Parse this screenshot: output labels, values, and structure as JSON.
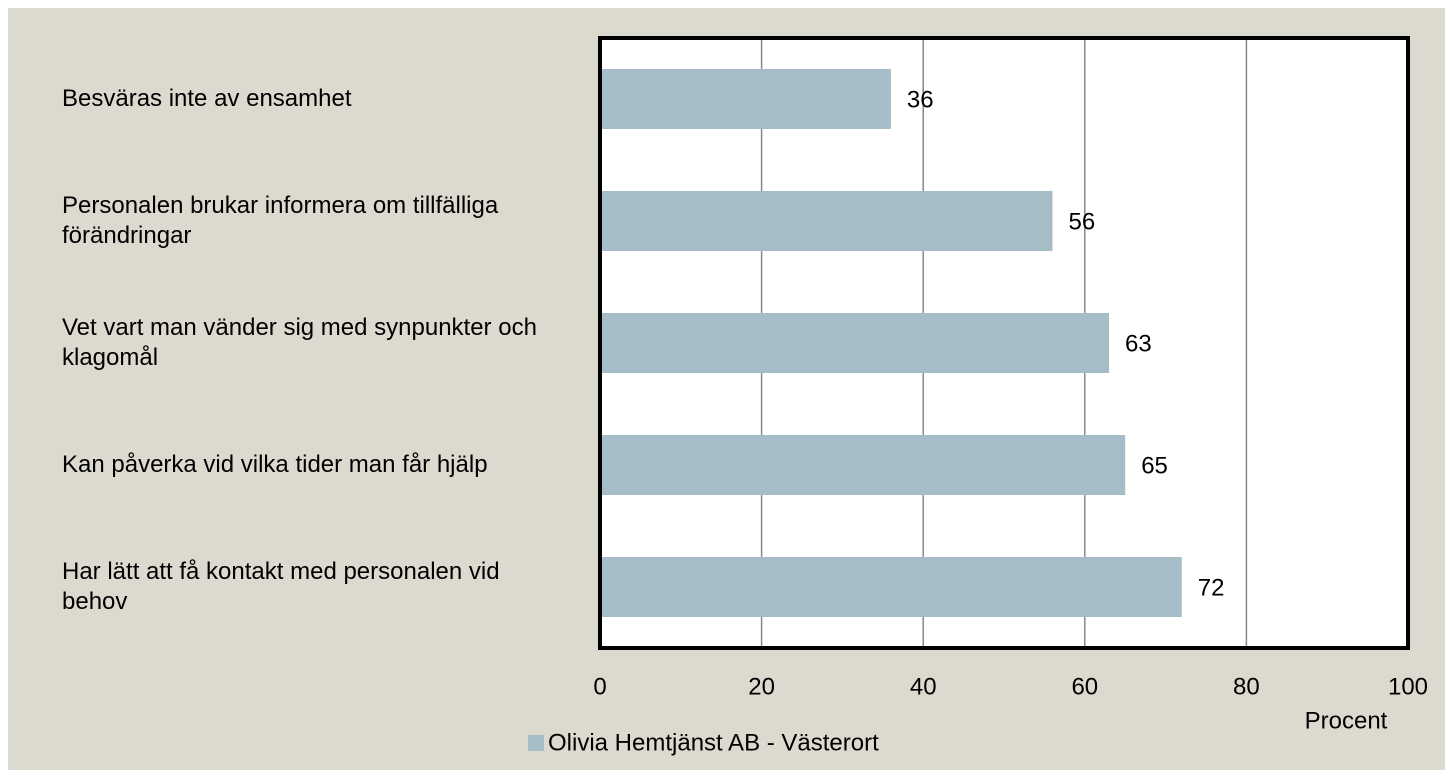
{
  "chart_data": {
    "type": "bar",
    "orientation": "horizontal",
    "categories": [
      "Besväras inte av ensamhet",
      "Personalen brukar informera om tillfälliga förändringar",
      "Vet vart man vänder sig med synpunkter och klagomål",
      "Kan påverka vid vilka tider man får hjälp",
      "Har lätt att få kontakt med personalen vid behov"
    ],
    "series": [
      {
        "name": "Olivia Hemtjänst AB - Västerort",
        "color": "#a6bcc6",
        "values": [
          36,
          56,
          63,
          65,
          72
        ]
      }
    ],
    "xlabel": "Procent",
    "xlim": [
      0,
      100
    ],
    "xticks": [
      0,
      20,
      40,
      60,
      80,
      100
    ],
    "grid": true,
    "legend": "bottom"
  }
}
